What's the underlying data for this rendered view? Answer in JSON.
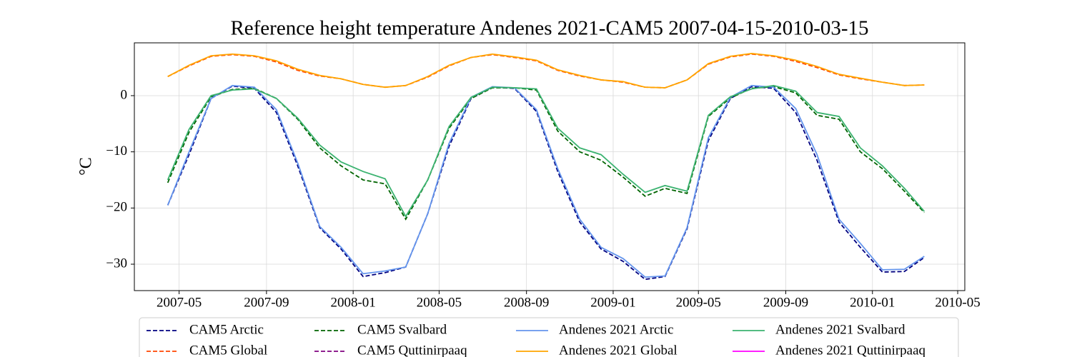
{
  "chart_data": {
    "type": "line",
    "title": "Reference height temperature Andenes 2021-CAM5 2007-04-15-2010-03-15",
    "y_label": "°C",
    "x": [
      "2007-04-15",
      "2007-05-15",
      "2007-06-15",
      "2007-07-15",
      "2007-08-15",
      "2007-09-15",
      "2007-10-15",
      "2007-11-15",
      "2007-12-15",
      "2008-01-15",
      "2008-02-15",
      "2008-03-15",
      "2008-04-15",
      "2008-05-15",
      "2008-06-15",
      "2008-07-15",
      "2008-08-15",
      "2008-09-15",
      "2008-10-15",
      "2008-11-15",
      "2008-12-15",
      "2009-01-15",
      "2009-02-15",
      "2009-03-15",
      "2009-04-15",
      "2009-05-15",
      "2009-06-15",
      "2009-07-15",
      "2009-08-15",
      "2009-09-15",
      "2009-10-15",
      "2009-11-15",
      "2009-12-15",
      "2010-01-15",
      "2010-02-15",
      "2010-03-15"
    ],
    "xlim": [
      "2007-02-27",
      "2010-05-11"
    ],
    "xticks": [
      "2007-05",
      "2007-09",
      "2008-01",
      "2008-05",
      "2008-09",
      "2009-01",
      "2009-05",
      "2009-09",
      "2010-01",
      "2010-05"
    ],
    "ylim": [
      -34.7,
      9.4
    ],
    "yticks": [
      {
        "value": 0,
        "label": "0"
      },
      {
        "value": -10,
        "label": "−10"
      },
      {
        "value": -20,
        "label": "−20"
      },
      {
        "value": -30,
        "label": "−30"
      }
    ],
    "grid": true,
    "legend": "below",
    "legend_columns": 4,
    "series": [
      {
        "name": "CAM5 Arctic",
        "color": "#000080",
        "dashed": true,
        "values": [
          -19.5,
          -10.5,
          -0.5,
          1.7,
          1.3,
          -3,
          -12.5,
          -23.5,
          -27.3,
          -32.2,
          -31.5,
          -30.5,
          -21,
          -9,
          -0.5,
          1.5,
          1.3,
          -2.8,
          -13.5,
          -22.5,
          -27.3,
          -29.5,
          -32.7,
          -32.2,
          -23.7,
          -8,
          -0.5,
          1.6,
          1.3,
          -3,
          -11.5,
          -22.5,
          -27,
          -31.4,
          -31.3,
          -28.8
        ]
      },
      {
        "name": "CAM5 Global",
        "color": "#ff4500",
        "dashed": true,
        "values": [
          3.4,
          5.3,
          7.0,
          7.3,
          7.0,
          6.0,
          4.5,
          3.5,
          3.0,
          2.0,
          1.5,
          1.8,
          3.3,
          5.3,
          6.8,
          7.3,
          6.8,
          6.2,
          4.5,
          3.5,
          2.8,
          2.4,
          1.5,
          1.4,
          2.8,
          5.6,
          6.9,
          7.4,
          7.0,
          6.1,
          5.0,
          3.7,
          3.0,
          2.4,
          1.8,
          1.9
        ]
      },
      {
        "name": "CAM5 Svalbard",
        "color": "#006400",
        "dashed": true,
        "values": [
          -15.5,
          -6.5,
          -0.2,
          1.1,
          1.3,
          -0.5,
          -4.2,
          -9.3,
          -12.5,
          -15,
          -15.7,
          -22,
          -15,
          -5.8,
          -0.5,
          1.4,
          1.4,
          1,
          -6.3,
          -10,
          -11.5,
          -14.5,
          -17.9,
          -16.5,
          -17.4,
          -3.7,
          -0.4,
          1.3,
          1.6,
          0.5,
          -3.5,
          -4.2,
          -10,
          -13,
          -17,
          -20.8
        ]
      },
      {
        "name": "CAM5 Quttinirpaaq",
        "color": "#800080",
        "dashed": true,
        "values": [
          null,
          null,
          null,
          null,
          null,
          null,
          null,
          null,
          null,
          null,
          null,
          null,
          null,
          null,
          null,
          null,
          null,
          null,
          null,
          null,
          null,
          null,
          null,
          null,
          null,
          null,
          null,
          null,
          null,
          null,
          null,
          null,
          null,
          null,
          null,
          null
        ]
      },
      {
        "name": "Andenes 2021 Arctic",
        "color": "#6495ed",
        "dashed": false,
        "values": [
          -19.5,
          -10,
          -0.5,
          1.8,
          1.5,
          -2.5,
          -12,
          -23.3,
          -27,
          -31.7,
          -31.2,
          -30.5,
          -21,
          -8.5,
          -0.3,
          1.6,
          1.4,
          -2.5,
          -13,
          -22,
          -27,
          -29,
          -32.3,
          -32.1,
          -23.5,
          -7.5,
          -0.3,
          1.8,
          1.5,
          -2.3,
          -10.5,
          -22,
          -26.3,
          -31,
          -30.9,
          -28.6
        ]
      },
      {
        "name": "Andenes 2021 Global",
        "color": "#ffa500",
        "dashed": false,
        "values": [
          3.4,
          5.4,
          7.1,
          7.4,
          7.1,
          6.2,
          4.7,
          3.6,
          3,
          2,
          1.5,
          1.8,
          3.4,
          5.4,
          6.8,
          7.4,
          6.9,
          6.3,
          4.6,
          3.6,
          2.8,
          2.5,
          1.5,
          1.4,
          2.8,
          5.7,
          7,
          7.5,
          7.1,
          6.3,
          5.2,
          3.8,
          3.1,
          2.4,
          1.8,
          1.9
        ]
      },
      {
        "name": "Andenes 2021 Svalbard",
        "color": "#3cb371",
        "dashed": false,
        "values": [
          -15,
          -6,
          0,
          1,
          1.2,
          -0.5,
          -4,
          -8.8,
          -11.8,
          -13.5,
          -14.8,
          -21.5,
          -15,
          -5.5,
          -0.3,
          1.5,
          1.4,
          1.2,
          -5.8,
          -9.3,
          -10.5,
          -14,
          -17.2,
          -16,
          -17,
          -3.5,
          -0.2,
          1.2,
          1.8,
          0.8,
          -3,
          -3.7,
          -9.3,
          -12.5,
          -16.5,
          -20.6
        ]
      },
      {
        "name": "Andenes 2021 Quttinirpaaq",
        "color": "#ff00ff",
        "dashed": false,
        "values": [
          null,
          null,
          null,
          null,
          null,
          null,
          null,
          null,
          null,
          null,
          null,
          null,
          null,
          null,
          null,
          null,
          null,
          null,
          null,
          null,
          null,
          null,
          null,
          null,
          null,
          null,
          null,
          null,
          null,
          null,
          null,
          null,
          null,
          null,
          null,
          null
        ]
      }
    ]
  }
}
